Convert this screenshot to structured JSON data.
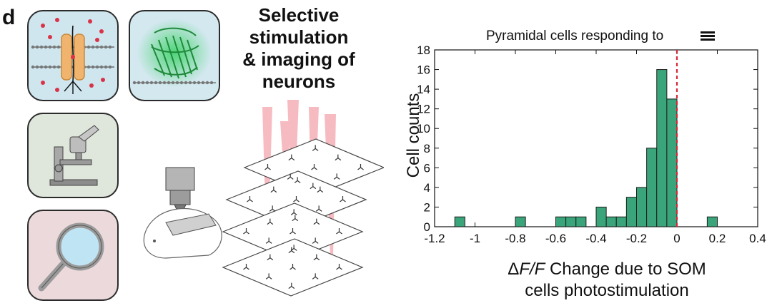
{
  "figure": {
    "panel_letter": "d",
    "illustration_title": [
      "Selective",
      "stimulation",
      "& imaging of",
      "neurons"
    ],
    "tile_icons": [
      "ion-channel-icon",
      "fluorescent-protein-icon",
      "microscope-icon",
      "magnifier-icon"
    ]
  },
  "chart_data": {
    "type": "bar",
    "title": "Pyramidal cells responding to",
    "title_icon": "stacked-bars-icon",
    "xlabel_prefix": "Δ",
    "xlabel_italic": "F/F",
    "xlabel_rest": " Change due to SOM",
    "xlabel_line2": "cells photostimulation",
    "ylabel": "Cell counts",
    "xlim": [
      -1.2,
      0.4
    ],
    "ylim": [
      0,
      18
    ],
    "xticks": [
      -1.2,
      -1,
      -0.8,
      -0.6,
      -0.4,
      -0.2,
      0,
      0.2,
      0.4
    ],
    "xtick_labels": [
      "-1.2",
      "-1",
      "-0.8",
      "-0.6",
      "-0.4",
      "-0.2",
      "0",
      "0.2",
      "0.4"
    ],
    "yticks": [
      0,
      2,
      4,
      6,
      8,
      10,
      12,
      14,
      16,
      18
    ],
    "ytick_labels": [
      "0",
      "2",
      "4",
      "6",
      "8",
      "10",
      "12",
      "14",
      "16",
      "18"
    ],
    "bin_width": 0.05,
    "bins": [
      {
        "start": -1.1,
        "count": 1
      },
      {
        "start": -0.8,
        "count": 1
      },
      {
        "start": -0.6,
        "count": 1
      },
      {
        "start": -0.55,
        "count": 1
      },
      {
        "start": -0.5,
        "count": 1
      },
      {
        "start": -0.4,
        "count": 2
      },
      {
        "start": -0.35,
        "count": 1
      },
      {
        "start": -0.3,
        "count": 1
      },
      {
        "start": -0.25,
        "count": 3
      },
      {
        "start": -0.2,
        "count": 4
      },
      {
        "start": -0.15,
        "count": 8
      },
      {
        "start": -0.1,
        "count": 16
      },
      {
        "start": -0.05,
        "count": 13
      },
      {
        "start": 0.15,
        "count": 1
      }
    ],
    "reference_line_x": 0,
    "bar_color": "#3aa57a",
    "bar_edge_color": "#1d1d1d",
    "reference_line_color": "#d62839",
    "grid": false
  }
}
